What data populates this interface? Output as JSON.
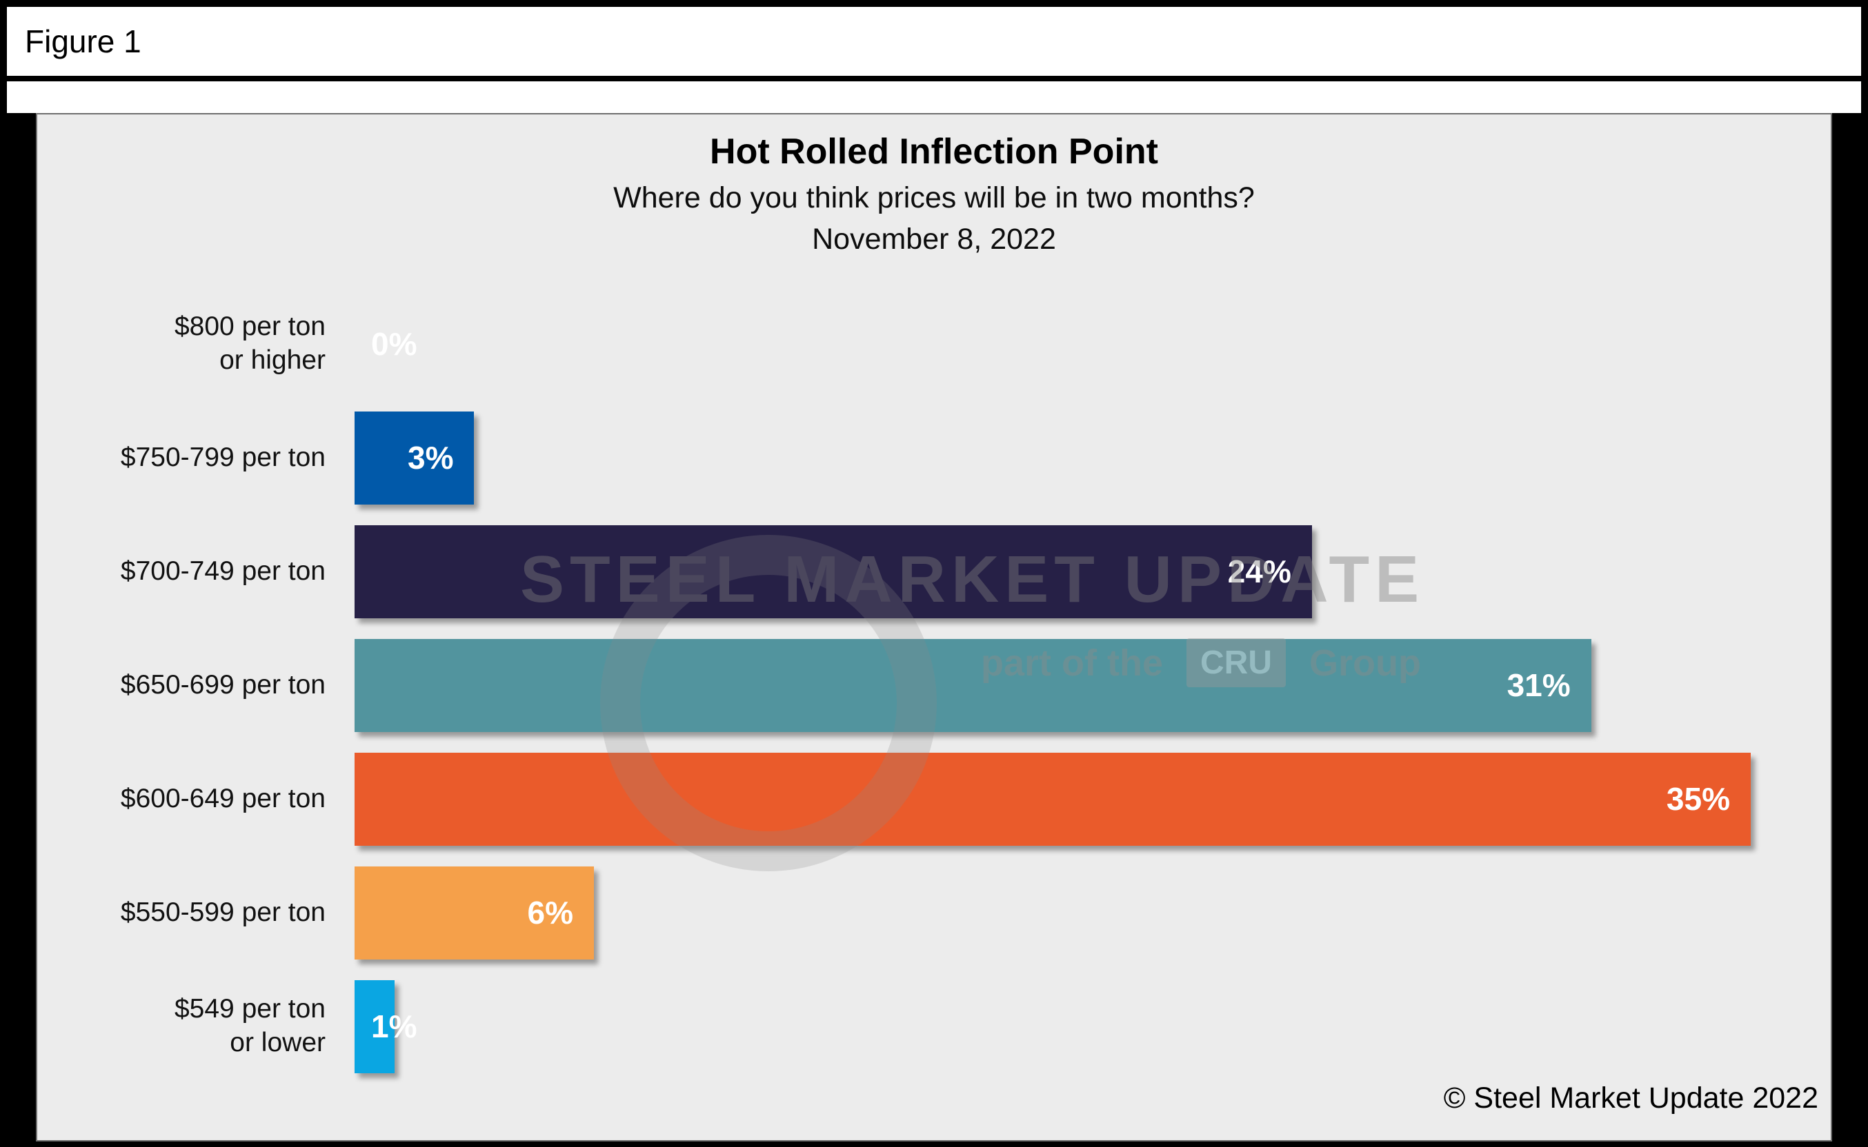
{
  "figure": {
    "label": "Figure 1"
  },
  "chart_data": {
    "type": "bar",
    "orientation": "horizontal",
    "title": "Hot Rolled Inflection Point",
    "subtitle": "Where do you think prices will be in two months?",
    "date": "November 8, 2022",
    "categories": [
      "$800 per ton\nor higher",
      "$750-799 per ton",
      "$700-749 per ton",
      "$650-699 per ton",
      "$600-649 per ton",
      "$550-599 per ton",
      "$549 per ton\nor lower"
    ],
    "values": [
      0,
      3,
      24,
      31,
      35,
      6,
      1
    ],
    "value_labels": [
      "0%",
      "3%",
      "24%",
      "31%",
      "35%",
      "6%",
      "1%"
    ],
    "bar_colors": [
      "#0159A9",
      "#0159A9",
      "#262046",
      "#52949E",
      "#EA5B2B",
      "#F5A04A",
      "#0AA6E2"
    ],
    "xlim": [
      0,
      35
    ],
    "grid": false,
    "legend": false,
    "value_label_color": "#FFFFFF",
    "plot_background": "#ECECEC"
  },
  "watermark": {
    "line1": "STEEL MARKET UPDATE",
    "line2_prefix": "part of the",
    "cru": "CRU",
    "line2_suffix": "Group"
  },
  "footer": {
    "copyright": "© Steel Market Update 2022"
  }
}
